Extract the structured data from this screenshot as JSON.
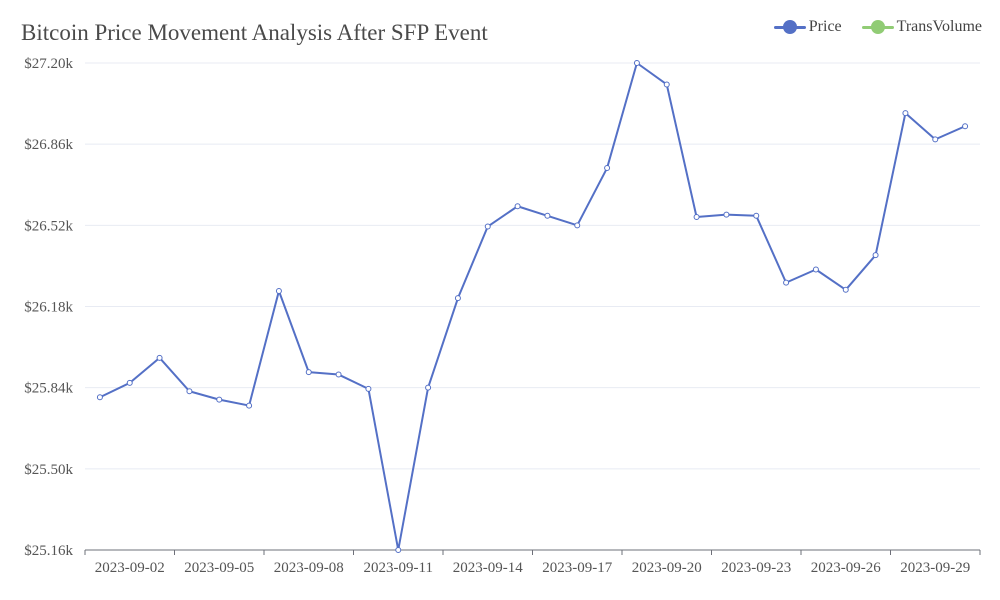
{
  "chart_data": {
    "type": "line",
    "title": "Bitcoin Price Movement Analysis After SFP Event",
    "xlabel": "",
    "ylabel": "",
    "x": [
      "2023-09-01",
      "2023-09-02",
      "2023-09-03",
      "2023-09-04",
      "2023-09-05",
      "2023-09-06",
      "2023-09-07",
      "2023-09-08",
      "2023-09-09",
      "2023-09-10",
      "2023-09-11",
      "2023-09-12",
      "2023-09-13",
      "2023-09-14",
      "2023-09-15",
      "2023-09-16",
      "2023-09-17",
      "2023-09-18",
      "2023-09-19",
      "2023-09-20",
      "2023-09-21",
      "2023-09-22",
      "2023-09-23",
      "2023-09-24",
      "2023-09-25",
      "2023-09-26",
      "2023-09-27",
      "2023-09-28",
      "2023-09-29",
      "2023-09-30"
    ],
    "x_tick_labels": [
      "2023-09-02",
      "2023-09-05",
      "2023-09-08",
      "2023-09-11",
      "2023-09-14",
      "2023-09-17",
      "2023-09-20",
      "2023-09-23",
      "2023-09-26",
      "2023-09-29"
    ],
    "y_tick_labels": [
      "$27.20k",
      "$26.86k",
      "$26.52k",
      "$26.18k",
      "$25.84k",
      "$25.50k",
      "$25.16k"
    ],
    "ylim": [
      25160,
      27200
    ],
    "series": [
      {
        "name": "Price",
        "color": "#5470c6",
        "values": [
          25800,
          25860,
          25965,
          25825,
          25790,
          25765,
          26245,
          25905,
          25895,
          25835,
          25160,
          25840,
          26215,
          26515,
          26600,
          26560,
          26520,
          26760,
          27200,
          27110,
          26555,
          26565,
          26560,
          26280,
          26335,
          26250,
          26395,
          26990,
          26880,
          26935
        ]
      }
    ],
    "legend": [
      {
        "name": "Price",
        "color": "#5470c6"
      },
      {
        "name": "TransVolume",
        "color": "#91cc75"
      }
    ],
    "legend_position": "top-right",
    "grid": true
  }
}
